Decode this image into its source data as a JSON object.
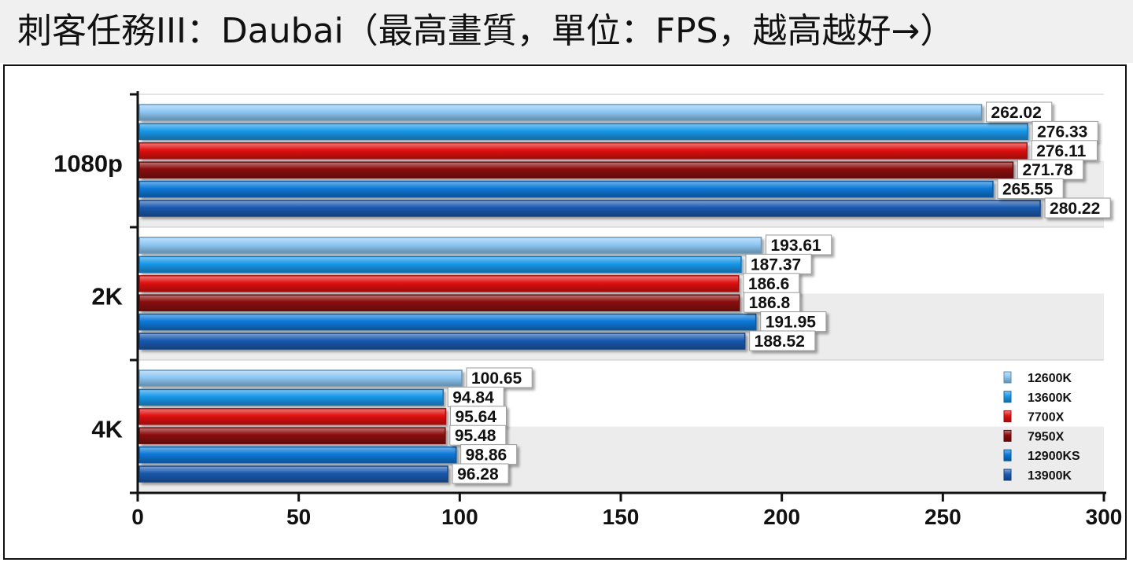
{
  "title": "刺客任務III：Daubai（最高畫質，單位：FPS，越高越好→）",
  "chart_data": {
    "type": "bar",
    "orientation": "horizontal",
    "categories": [
      "1080p",
      "2K",
      "4K"
    ],
    "series": [
      {
        "name": "12600K",
        "values": [
          262.02,
          193.61,
          100.65
        ],
        "color": "#8ec8f4"
      },
      {
        "name": "13600K",
        "values": [
          276.33,
          187.37,
          94.84
        ],
        "color": "#1a98ea"
      },
      {
        "name": "7700X",
        "values": [
          276.11,
          186.6,
          95.64
        ],
        "color": "#e01212"
      },
      {
        "name": "7950X",
        "values": [
          271.78,
          186.8,
          95.48
        ],
        "color": "#8a0a0a"
      },
      {
        "name": "12900KS",
        "values": [
          265.55,
          191.95,
          98.86
        ],
        "color": "#0a78d8"
      },
      {
        "name": "13900K",
        "values": [
          280.22,
          188.52,
          96.28
        ],
        "color": "#1a5ab0"
      }
    ],
    "value_labels": [
      [
        "262.02",
        "193.61",
        "100.65"
      ],
      [
        "276.33",
        "187.37",
        "94.84"
      ],
      [
        "276.11",
        "186.6",
        "95.64"
      ],
      [
        "271.78",
        "186.8",
        "95.48"
      ],
      [
        "265.55",
        "191.95",
        "98.86"
      ],
      [
        "280.22",
        "188.52",
        "96.28"
      ]
    ],
    "xlim": [
      0,
      300
    ],
    "x_ticks": [
      "0",
      "50",
      "100",
      "150",
      "200",
      "250",
      "300"
    ],
    "grid": true,
    "legend": "bottom-right"
  }
}
